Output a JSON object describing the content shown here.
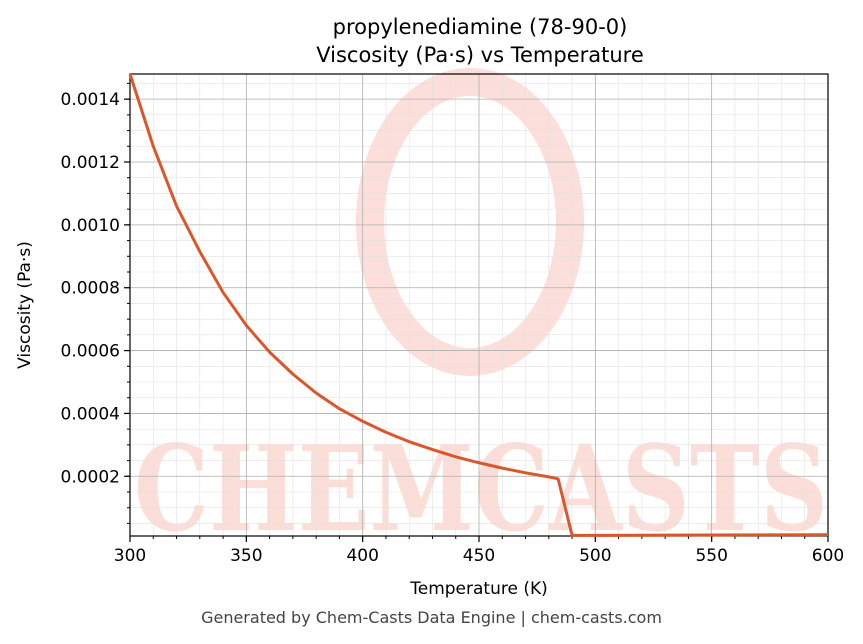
{
  "title_line1": "propylenediamine (78-90-0)",
  "title_line2": "Viscosity (Pa·s) vs Temperature",
  "footer": "Generated by Chem-Casts Data Engine | chem-casts.com",
  "watermark": "CHEMCASTS",
  "colors": {
    "line": "#d9572a",
    "watermark": "#fcd9d3"
  },
  "chart_data": {
    "type": "line",
    "xlabel": "Temperature (K)",
    "ylabel": "Viscosity (Pa·s)",
    "xlim": [
      300,
      600
    ],
    "ylim": [
      1e-05,
      0.00148
    ],
    "grid": true,
    "minor_grid": true,
    "x_ticks": [
      300,
      350,
      400,
      450,
      500,
      550,
      600
    ],
    "x_tick_labels": [
      "300",
      "350",
      "400",
      "450",
      "500",
      "550",
      "600"
    ],
    "y_ticks": [
      0.0002,
      0.0004,
      0.0006,
      0.0008,
      0.001,
      0.0012,
      0.0014
    ],
    "y_tick_labels": [
      "0.0002",
      "0.0004",
      "0.0006",
      "0.0008",
      "0.0010",
      "0.0012",
      "0.0014"
    ],
    "series": [
      {
        "x": [
          300,
          310,
          320,
          330,
          340,
          350,
          360,
          370,
          380,
          390,
          400,
          410,
          420,
          430,
          440,
          450,
          460,
          470,
          480,
          484,
          490,
          500,
          550,
          600
        ],
        "y": [
          0.00148,
          0.00125,
          0.00106,
          0.000915,
          0.000785,
          0.00068,
          0.000595,
          0.000525,
          0.000465,
          0.000415,
          0.000375,
          0.00034,
          0.00031,
          0.000285,
          0.000262,
          0.000243,
          0.000226,
          0.000211,
          0.000198,
          0.000192,
          1.2e-05,
          1.2e-05,
          1.3e-05,
          1.4e-05
        ]
      }
    ]
  }
}
